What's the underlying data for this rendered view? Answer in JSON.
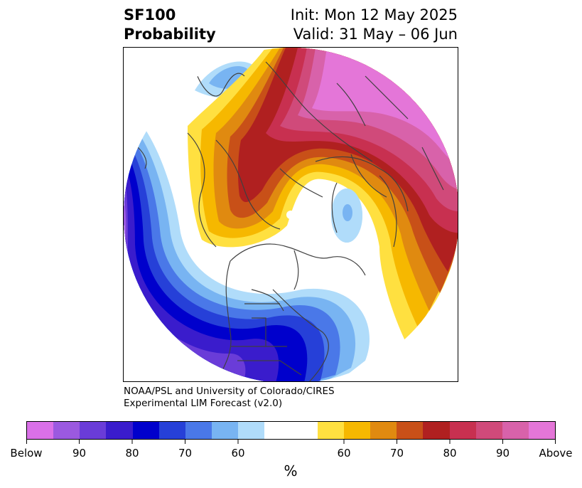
{
  "title": {
    "line1": "SF100",
    "line2": "Probability",
    "init": "Init: Mon 12 May 2025",
    "valid": "Valid: 31 May – 06 Jun"
  },
  "credit": {
    "line1": "NOAA/PSL and University of Colorado/CIRES",
    "line2": "Experimental LIM Forecast (v2.0)"
  },
  "colorbar": {
    "colors": [
      "#da70e8",
      "#9b59e0",
      "#6a3cd8",
      "#3a1ccc",
      "#0000cc",
      "#2640d8",
      "#4a78e8",
      "#78b4f2",
      "#b0dcfa",
      "#ffffff",
      "#ffffff",
      "#ffe040",
      "#f6b800",
      "#e08a10",
      "#c85018",
      "#b02020",
      "#c83050",
      "#d04a7a",
      "#d862aa",
      "#e476d8"
    ],
    "tick_labels": [
      "Below",
      "90",
      "80",
      "70",
      "60",
      "60",
      "70",
      "80",
      "90",
      "Above"
    ],
    "units": "%"
  }
}
